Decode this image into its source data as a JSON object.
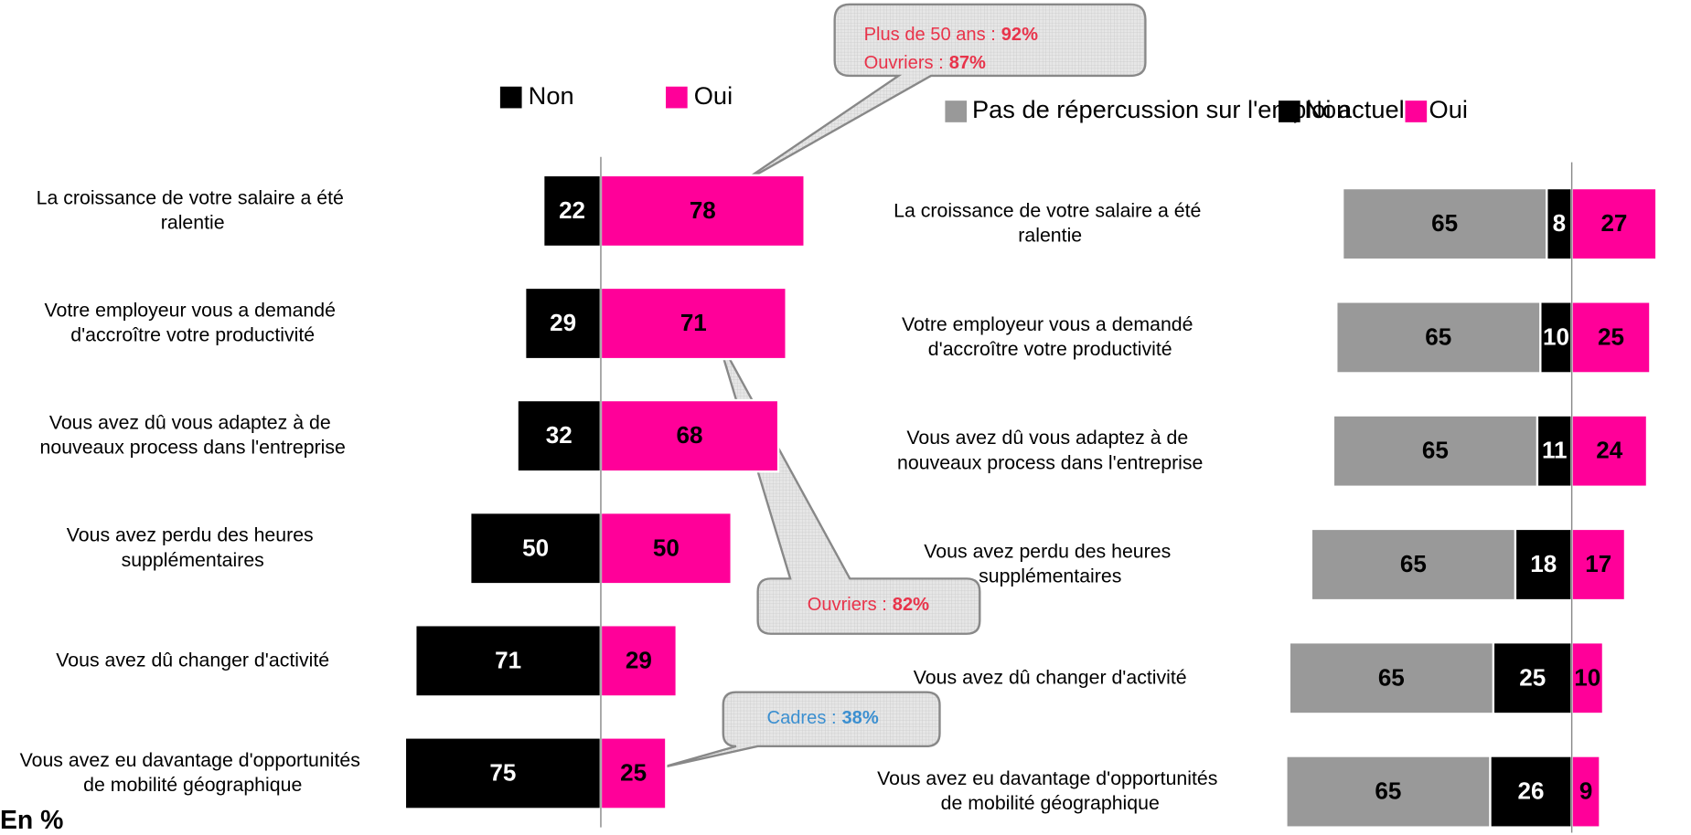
{
  "chart_data": [
    {
      "type": "bar",
      "categories": [
        "La croissance de votre salaire a été ralentie",
        "Votre employeur vous a demandé d'accroître votre productivité",
        "Vous avez dû vous adaptez à de nouveaux process dans l'entreprise",
        "Vous avez perdu des heures supplémentaires",
        "Vous avez dû changer d'activité",
        "Vous avez eu davantage d'opportunités de mobilité géographique"
      ],
      "series": [
        {
          "name": "Non",
          "color": "#000000",
          "side": "left",
          "values": [
            22,
            29,
            32,
            50,
            71,
            75
          ]
        },
        {
          "name": "Oui",
          "color": "#ff0099",
          "side": "right",
          "values": [
            78,
            71,
            68,
            50,
            29,
            25
          ]
        }
      ],
      "xlim": [
        -85,
        85
      ],
      "annotations": [
        {
          "lines": [
            {
              "label": "Plus de 50 ans :",
              "value": "92%"
            },
            {
              "label": "Ouvriers :",
              "value": "87%"
            }
          ],
          "color": "#e8334a"
        },
        {
          "lines": [
            {
              "label": "Ouvriers :",
              "value": "82%"
            }
          ],
          "color": "#e8334a"
        },
        {
          "lines": [
            {
              "label": "Cadres :",
              "value": "38%"
            }
          ],
          "color": "#3b8fd0"
        }
      ],
      "note": "En %"
    },
    {
      "type": "bar",
      "categories": [
        "La croissance de votre salaire a été ralentie",
        "Votre employeur vous a demandé d'accroître votre productivité",
        "Vous avez dû vous adaptez à de nouveaux process dans l'entreprise",
        "Vous avez perdu des heures supplémentaires",
        "Vous avez dû changer d'activité",
        "Vous avez eu davantage d'opportunités de mobilité géographique"
      ],
      "series": [
        {
          "name": "Pas de répercussion sur l'emploi actuel",
          "color": "#999999",
          "side": "left",
          "values": [
            65,
            65,
            65,
            65,
            65,
            65
          ]
        },
        {
          "name": "Non",
          "color": "#000000",
          "side": "left",
          "values": [
            8,
            10,
            11,
            18,
            25,
            26
          ]
        },
        {
          "name": "Oui",
          "color": "#ff0099",
          "side": "right",
          "values": [
            27,
            25,
            24,
            17,
            10,
            9
          ]
        }
      ],
      "xlim": [
        -100,
        38
      ]
    }
  ]
}
